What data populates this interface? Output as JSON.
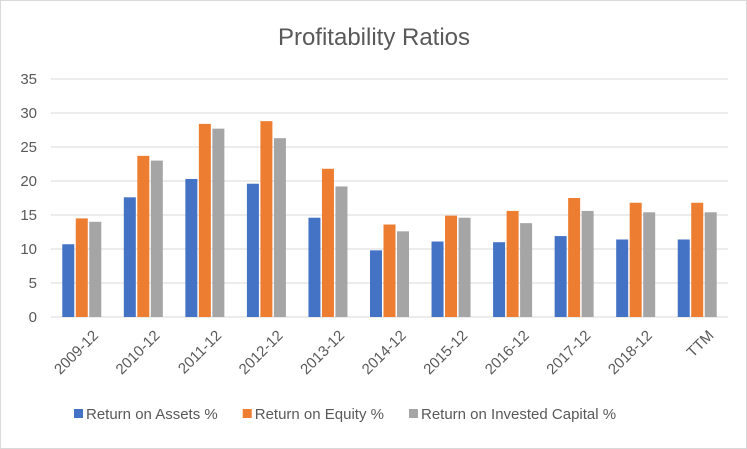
{
  "chart_data": {
    "type": "bar",
    "title": "Profitability Ratios",
    "categories": [
      "2009-12",
      "2010-12",
      "2011-12",
      "2012-12",
      "2013-12",
      "2014-12",
      "2015-12",
      "2016-12",
      "2017-12",
      "2018-12",
      "TTM"
    ],
    "series": [
      {
        "name": "Return on Assets %",
        "color": "#4472c4",
        "values": [
          10.7,
          17.6,
          20.3,
          19.6,
          14.6,
          9.8,
          11.1,
          11.0,
          11.9,
          11.4,
          11.4
        ]
      },
      {
        "name": "Return on Equity %",
        "color": "#ed7d31",
        "values": [
          14.5,
          23.7,
          28.4,
          28.8,
          21.8,
          13.6,
          14.9,
          15.6,
          17.5,
          16.8,
          16.8
        ]
      },
      {
        "name": "Return on Invested Capital %",
        "color": "#a5a5a5",
        "values": [
          14.0,
          23.0,
          27.7,
          26.3,
          19.2,
          12.6,
          14.6,
          13.8,
          15.6,
          15.4,
          15.4
        ]
      }
    ],
    "ylim": [
      0,
      35
    ],
    "yticks": [
      0,
      5,
      10,
      15,
      20,
      25,
      30,
      35
    ],
    "xlabel": "",
    "ylabel": "",
    "grid": true,
    "legend": "bottom",
    "gridline_color": "#d9d9d9",
    "text_color": "#595959"
  }
}
